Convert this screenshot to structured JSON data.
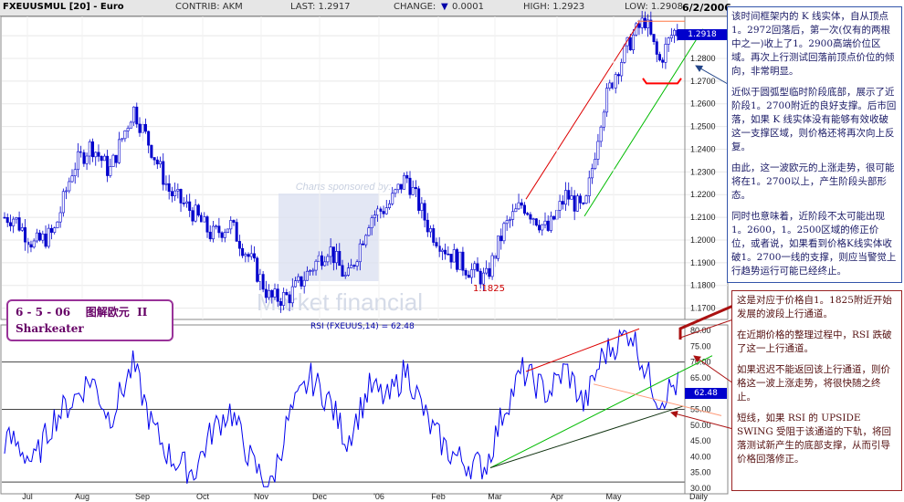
{
  "header": {
    "symbol": "FXEUUSMUL [20] - Euro",
    "contrib": "CONTRIB: AKM",
    "last": "LAST: 1.2917",
    "change_label": "CHANGE:",
    "change_value": "0.0001",
    "high": "HIGH: 1.2923",
    "low": "LOW: 1.2908",
    "date": "6/2/2006"
  },
  "title_box": {
    "line1": "6 - 5 - 06    图解欧元  II",
    "line2": "Sharkeater"
  },
  "sponsor": {
    "text": "Charts sponsored by:",
    "brand": "Market financial"
  },
  "price_label": "1.2918",
  "rsi_label": "62.48",
  "rsi_caption": "RSI (FXEUUS,14) = 62.48",
  "low_annotation": "1.1825",
  "price_axis": [
    "1.2900",
    "1.2800",
    "1.2700",
    "1.2600",
    "1.2500",
    "1.2400",
    "1.2300",
    "1.2200",
    "1.2100",
    "1.2000",
    "1.1900",
    "1.1800",
    "1.1700"
  ],
  "rsi_axis": [
    "80.00",
    "75.00",
    "70.00",
    "65.00",
    "60.00",
    "55.00",
    "50.00",
    "45.00",
    "40.00",
    "35.00",
    "30.00"
  ],
  "x_axis": [
    "Jul",
    "Aug",
    "Sep",
    "Oct",
    "Nov",
    "Dec",
    "'06",
    "Feb",
    "Mar",
    "Apr",
    "May",
    "Daily"
  ],
  "notes_top": [
    "该时间框架内的 K 线实体，自从顶点1。2972回落后，第一次(仅有的两根中之一)收上了1。2900高端价位区域。再次上行测试回落前顶点价位的倾向，非常明显。",
    "近似于圆弧型临时阶段底部，展示了近阶段1。2700附近的良好支撑。后市回落，如果 K 线实体没有能够有效收破这一支撑区域，则价格还将再次向上反复。",
    "由此，这一波欧元的上涨走势，很可能将在1。2700以上，产生阶段头部形态。",
    "同时也意味着，近阶段不太可能出现1。2600，1。2500区域的修正价位，或者说，如果看到价格K线实体收破1。2700一线的支撑，则应当警觉上行趋势运行可能已经终止。"
  ],
  "notes_bottom": [
    "这是对应于价格自1。1825附近开始发展的波段上行通道。",
    "在近期价格的整理过程中，RSI 跌破了这一上行通道。",
    "如果迟迟不能返回该上行通道，则价格这一波上涨走势，将很快随之终止。",
    "短线，如果 RSI 的 UPSIDE SWING 受阻于该通道的下轨，将回落测试新产生的底部支撑，从而引导价格回落修正。"
  ],
  "colors": {
    "candle": "#0000cc",
    "up_channel": "#00bb00",
    "down_channel": "#dd0000",
    "rsi_line": "#0000ee",
    "header_bg": "#e6e6e6",
    "note_border": "#3355aa",
    "note_border_bottom": "#992222",
    "title_border": "#993399"
  },
  "chart_data": [
    {
      "type": "candlestick",
      "title": "FXEUUSMUL [20] - Euro",
      "ylim": [
        1.165,
        1.2985
      ],
      "x_ticks": [
        "Jul",
        "Aug",
        "Sep",
        "Oct",
        "Nov",
        "Dec",
        "'06",
        "Feb",
        "Mar",
        "Apr",
        "May"
      ],
      "key_levels": {
        "swing_low": 1.1825,
        "recent_high": 1.2972,
        "last": 1.2918
      },
      "path_points": [
        {
          "x": "Jul",
          "y": 1.21
        },
        {
          "x": "Jul",
          "y": 1.198
        },
        {
          "x": "Jul",
          "y": 1.203
        },
        {
          "x": "Aug",
          "y": 1.232
        },
        {
          "x": "Aug",
          "y": 1.242
        },
        {
          "x": "Aug",
          "y": 1.23
        },
        {
          "x": "Sep",
          "y": 1.258
        },
        {
          "x": "Sep",
          "y": 1.24
        },
        {
          "x": "Sep",
          "y": 1.221
        },
        {
          "x": "Oct",
          "y": 1.212
        },
        {
          "x": "Oct",
          "y": 1.202
        },
        {
          "x": "Oct",
          "y": 1.207
        },
        {
          "x": "Nov",
          "y": 1.19
        },
        {
          "x": "Nov",
          "y": 1.174
        },
        {
          "x": "Nov",
          "y": 1.175
        },
        {
          "x": "Dec",
          "y": 1.187
        },
        {
          "x": "Dec",
          "y": 1.197
        },
        {
          "x": "Dec",
          "y": 1.182
        },
        {
          "x": "'06",
          "y": 1.21
        },
        {
          "x": "'06",
          "y": 1.215
        },
        {
          "x": "'06",
          "y": 1.228
        },
        {
          "x": "Feb",
          "y": 1.205
        },
        {
          "x": "Feb",
          "y": 1.195
        },
        {
          "x": "Feb",
          "y": 1.188
        },
        {
          "x": "Mar",
          "y": 1.1825
        },
        {
          "x": "Mar",
          "y": 1.205
        },
        {
          "x": "Mar",
          "y": 1.216
        },
        {
          "x": "Apr",
          "y": 1.204
        },
        {
          "x": "Apr",
          "y": 1.22
        },
        {
          "x": "Apr",
          "y": 1.212
        },
        {
          "x": "May",
          "y": 1.258
        },
        {
          "x": "May",
          "y": 1.275
        },
        {
          "x": "May",
          "y": 1.288
        },
        {
          "x": "May",
          "y": 1.2972
        },
        {
          "x": "May",
          "y": 1.278
        },
        {
          "x": "May",
          "y": 1.2918
        }
      ]
    },
    {
      "type": "line",
      "title": "RSI (FXEUUS,14) = 62.48",
      "ylim": [
        30,
        80
      ],
      "reference_lines": [
        70,
        55,
        32
      ],
      "path_points": [
        {
          "x": "Jul",
          "y": 45
        },
        {
          "x": "Jul",
          "y": 38
        },
        {
          "x": "Jul",
          "y": 52
        },
        {
          "x": "Aug",
          "y": 58
        },
        {
          "x": "Aug",
          "y": 65
        },
        {
          "x": "Aug",
          "y": 52
        },
        {
          "x": "Sep",
          "y": 69
        },
        {
          "x": "Sep",
          "y": 50
        },
        {
          "x": "Sep",
          "y": 40
        },
        {
          "x": "Oct",
          "y": 35
        },
        {
          "x": "Oct",
          "y": 48
        },
        {
          "x": "Oct",
          "y": 55
        },
        {
          "x": "Nov",
          "y": 38
        },
        {
          "x": "Nov",
          "y": 30
        },
        {
          "x": "Nov",
          "y": 52
        },
        {
          "x": "Dec",
          "y": 65
        },
        {
          "x": "Dec",
          "y": 58
        },
        {
          "x": "Dec",
          "y": 45
        },
        {
          "x": "'06",
          "y": 62
        },
        {
          "x": "'06",
          "y": 58
        },
        {
          "x": "'06",
          "y": 68
        },
        {
          "x": "Feb",
          "y": 50
        },
        {
          "x": "Feb",
          "y": 42
        },
        {
          "x": "Feb",
          "y": 38
        },
        {
          "x": "Mar",
          "y": 37
        },
        {
          "x": "Mar",
          "y": 55
        },
        {
          "x": "Mar",
          "y": 67
        },
        {
          "x": "Apr",
          "y": 60
        },
        {
          "x": "Apr",
          "y": 68
        },
        {
          "x": "Apr",
          "y": 56
        },
        {
          "x": "May",
          "y": 72
        },
        {
          "x": "May",
          "y": 76
        },
        {
          "x": "May",
          "y": 80
        },
        {
          "x": "May",
          "y": 68
        },
        {
          "x": "May",
          "y": 58
        },
        {
          "x": "May",
          "y": 62.48
        }
      ]
    }
  ]
}
